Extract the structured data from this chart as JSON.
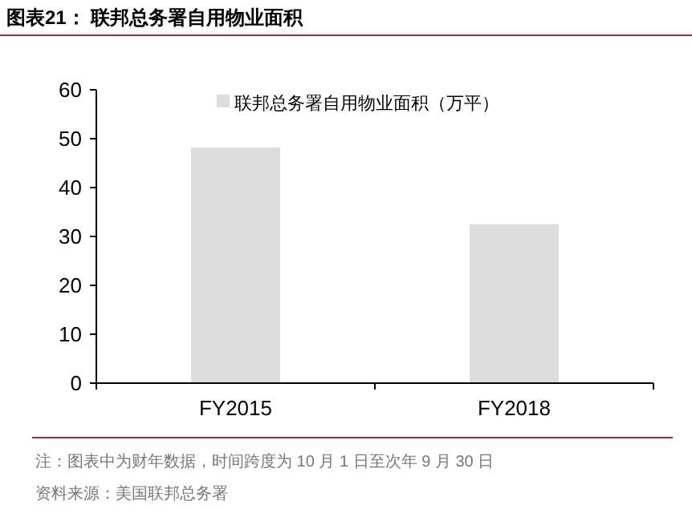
{
  "chart_data": {
    "type": "bar",
    "title": "图表21：  联邦总务署自用物业面积",
    "categories": [
      "FY2015",
      "FY2018"
    ],
    "series": [
      {
        "name": "联邦总务署自用物业面积（万平）",
        "color": "#dddddd",
        "values": [
          48.2,
          32.5
        ]
      }
    ],
    "ylim": [
      0,
      60
    ],
    "yticks": [
      0,
      10,
      20,
      30,
      40,
      50,
      60
    ],
    "grid": false,
    "legend": "top",
    "annotations": [
      "注：图表中为财年数据，时间跨度为 10 月 1 日至次年 9 月 30 日",
      "资料来源：美国联邦总务署"
    ]
  }
}
